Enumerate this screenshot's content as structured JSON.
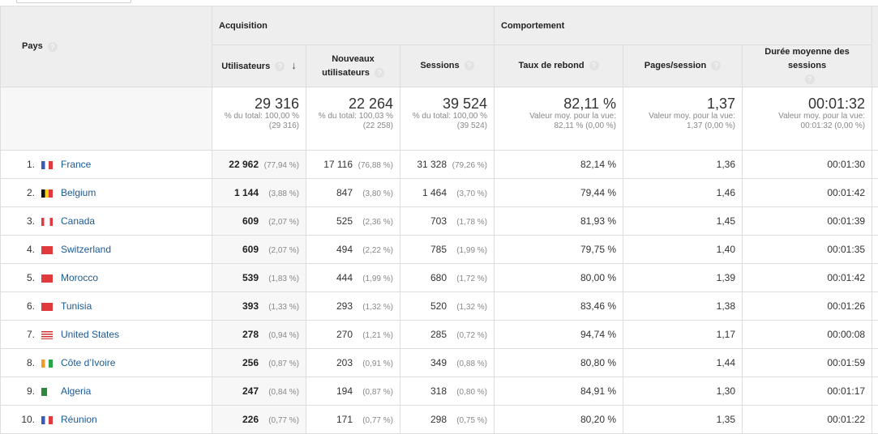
{
  "header": {
    "pays": "Pays",
    "acquisition": "Acquisition",
    "comportement": "Comportement",
    "columns": [
      "Utilisateurs",
      "Nouveaux utilisateurs",
      "Sessions",
      "Taux de rebond",
      "Pages/session",
      "Durée moyenne des sessions"
    ],
    "help": "?",
    "sort_arrow": "↓"
  },
  "totals": {
    "users": {
      "value": "29 316",
      "l1": "% du total: 100,00 %",
      "l2": "(29 316)"
    },
    "new_users": {
      "value": "22 264",
      "l1": "% du total: 100,03 %",
      "l2": "(22 258)"
    },
    "sessions": {
      "value": "39 524",
      "l1": "% du total: 100,00 %",
      "l2": "(39 524)"
    },
    "bounce": {
      "value": "82,11 %",
      "l1": "Valeur moy. pour la vue:",
      "l2": "82,11 % (0,00 %)"
    },
    "pages": {
      "value": "1,37",
      "l1": "Valeur moy. pour la vue:",
      "l2": "1,37 (0,00 %)"
    },
    "duration": {
      "value": "00:01:32",
      "l1": "Valeur moy. pour la vue:",
      "l2": "00:01:32 (0,00 %)"
    }
  },
  "rows": [
    {
      "idx": "1.",
      "country": "France",
      "flag": "fr",
      "users": "22 962",
      "users_pct": "(77,94 %)",
      "new": "17 116",
      "new_pct": "(76,88 %)",
      "sessions": "31 328",
      "sessions_pct": "(79,26 %)",
      "bounce": "82,14 %",
      "pages": "1,36",
      "duration": "00:01:30"
    },
    {
      "idx": "2.",
      "country": "Belgium",
      "flag": "be",
      "users": "1 144",
      "users_pct": "(3,88 %)",
      "new": "847",
      "new_pct": "(3,80 %)",
      "sessions": "1 464",
      "sessions_pct": "(3,70 %)",
      "bounce": "79,44 %",
      "pages": "1,46",
      "duration": "00:01:42"
    },
    {
      "idx": "3.",
      "country": "Canada",
      "flag": "ca",
      "users": "609",
      "users_pct": "(2,07 %)",
      "new": "525",
      "new_pct": "(2,36 %)",
      "sessions": "703",
      "sessions_pct": "(1,78 %)",
      "bounce": "81,93 %",
      "pages": "1,45",
      "duration": "00:01:39"
    },
    {
      "idx": "4.",
      "country": "Switzerland",
      "flag": "ch",
      "users": "609",
      "users_pct": "(2,07 %)",
      "new": "494",
      "new_pct": "(2,22 %)",
      "sessions": "785",
      "sessions_pct": "(1,99 %)",
      "bounce": "79,75 %",
      "pages": "1,40",
      "duration": "00:01:35"
    },
    {
      "idx": "5.",
      "country": "Morocco",
      "flag": "ma",
      "users": "539",
      "users_pct": "(1,83 %)",
      "new": "444",
      "new_pct": "(1,99 %)",
      "sessions": "680",
      "sessions_pct": "(1,72 %)",
      "bounce": "80,00 %",
      "pages": "1,39",
      "duration": "00:01:42"
    },
    {
      "idx": "6.",
      "country": "Tunisia",
      "flag": "tn",
      "users": "393",
      "users_pct": "(1,33 %)",
      "new": "293",
      "new_pct": "(1,32 %)",
      "sessions": "520",
      "sessions_pct": "(1,32 %)",
      "bounce": "83,46 %",
      "pages": "1,38",
      "duration": "00:01:26"
    },
    {
      "idx": "7.",
      "country": "United States",
      "flag": "us",
      "users": "278",
      "users_pct": "(0,94 %)",
      "new": "270",
      "new_pct": "(1,21 %)",
      "sessions": "285",
      "sessions_pct": "(0,72 %)",
      "bounce": "94,74 %",
      "pages": "1,17",
      "duration": "00:00:08"
    },
    {
      "idx": "8.",
      "country": "Côte d’Ivoire",
      "flag": "ci",
      "users": "256",
      "users_pct": "(0,87 %)",
      "new": "203",
      "new_pct": "(0,91 %)",
      "sessions": "349",
      "sessions_pct": "(0,88 %)",
      "bounce": "80,80 %",
      "pages": "1,44",
      "duration": "00:01:59"
    },
    {
      "idx": "9.",
      "country": "Algeria",
      "flag": "dz",
      "users": "247",
      "users_pct": "(0,84 %)",
      "new": "194",
      "new_pct": "(0,87 %)",
      "sessions": "318",
      "sessions_pct": "(0,80 %)",
      "bounce": "84,91 %",
      "pages": "1,30",
      "duration": "00:01:17"
    },
    {
      "idx": "10.",
      "country": "Réunion",
      "flag": "re",
      "users": "226",
      "users_pct": "(0,77 %)",
      "new": "171",
      "new_pct": "(0,77 %)",
      "sessions": "298",
      "sessions_pct": "(0,75 %)",
      "bounce": "80,20 %",
      "pages": "1,35",
      "duration": "00:01:22"
    }
  ]
}
